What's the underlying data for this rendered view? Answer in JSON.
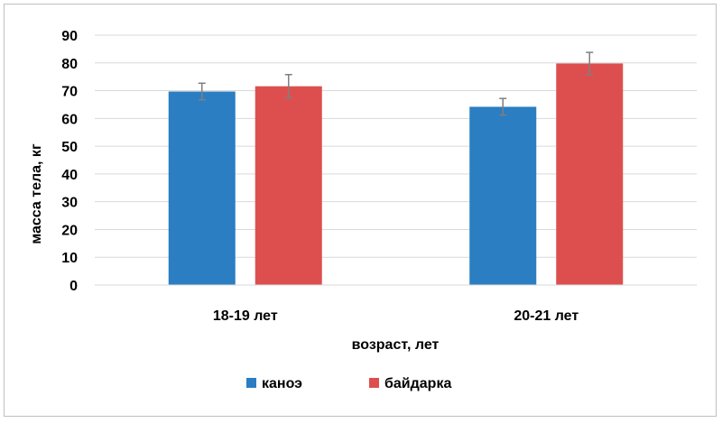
{
  "chart_data": {
    "type": "bar",
    "categories": [
      "18-19 лет",
      "20-21 лет"
    ],
    "series": [
      {
        "name": "каноэ",
        "color": "#2a7ec1",
        "values": [
          69.7,
          64.2
        ],
        "errors": [
          3.0,
          3.0
        ]
      },
      {
        "name": "байдарка",
        "color": "#dd4f4e",
        "values": [
          71.6,
          79.8
        ],
        "errors": [
          4.2,
          4.0
        ]
      }
    ],
    "xlabel": "возраст, лет",
    "ylabel": "масса тела, кг",
    "ylim": [
      0,
      90
    ],
    "yticks": [
      0,
      10,
      20,
      30,
      40,
      50,
      60,
      70,
      80,
      90
    ],
    "grid": true,
    "legend": "bottom",
    "gridColor": "#d9d9d9",
    "errorColor": "#7f7f7f"
  }
}
